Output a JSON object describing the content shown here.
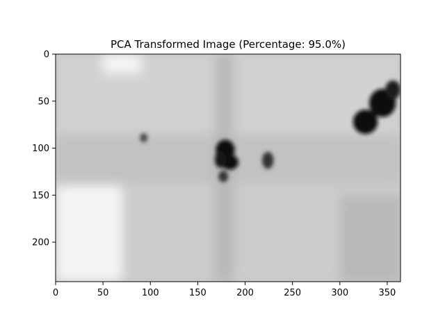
{
  "chart_data": {
    "type": "heatmap",
    "title": "PCA Transformed Image (Percentage: 95.0%)",
    "xlabel": "",
    "ylabel": "",
    "colormap": "gray",
    "image_shape": [
      242,
      364
    ],
    "xlim": [
      0,
      364
    ],
    "ylim": [
      242,
      0
    ],
    "x_ticks": [
      0,
      50,
      100,
      150,
      200,
      250,
      300,
      350
    ],
    "y_ticks": [
      0,
      50,
      100,
      150,
      200
    ],
    "grid": false,
    "legend": "none",
    "background_level": 0.78,
    "regions": [
      {
        "label": "upper band",
        "x_range": [
          0,
          364
        ],
        "y_range": [
          0,
          85
        ],
        "level": 0.82
      },
      {
        "label": "middle band",
        "x_range": [
          0,
          364
        ],
        "y_range": [
          85,
          138
        ],
        "level": 0.76
      },
      {
        "label": "lower band",
        "x_range": [
          0,
          364
        ],
        "y_range": [
          138,
          242
        ],
        "level": 0.8
      },
      {
        "label": "left bright area",
        "x_range": [
          0,
          70
        ],
        "y_range": [
          140,
          242
        ],
        "level": 0.96
      },
      {
        "label": "top bright spot",
        "x_range": [
          50,
          90
        ],
        "y_range": [
          0,
          20
        ],
        "level": 0.97
      },
      {
        "label": "right light area",
        "x_range": [
          300,
          364
        ],
        "y_range": [
          150,
          242
        ],
        "level": 0.72
      },
      {
        "label": "vertical streak",
        "x_range": [
          168,
          188
        ],
        "y_range": [
          0,
          242
        ],
        "level": 0.72
      }
    ],
    "dark_spots": [
      {
        "x": 93,
        "y": 89,
        "rx": 4,
        "ry": 5,
        "level": 0.3
      },
      {
        "x": 179,
        "y": 102,
        "rx": 10,
        "ry": 11,
        "level": 0.05
      },
      {
        "x": 184,
        "y": 115,
        "rx": 9,
        "ry": 8,
        "level": 0.05
      },
      {
        "x": 174,
        "y": 112,
        "rx": 6,
        "ry": 9,
        "level": 0.08
      },
      {
        "x": 177,
        "y": 130,
        "rx": 5,
        "ry": 6,
        "level": 0.2
      },
      {
        "x": 224,
        "y": 113,
        "rx": 6,
        "ry": 9,
        "level": 0.2
      },
      {
        "x": 327,
        "y": 72,
        "rx": 13,
        "ry": 13,
        "level": 0.05
      },
      {
        "x": 345,
        "y": 52,
        "rx": 14,
        "ry": 15,
        "level": 0.05
      },
      {
        "x": 356,
        "y": 38,
        "rx": 8,
        "ry": 10,
        "level": 0.1
      }
    ]
  }
}
